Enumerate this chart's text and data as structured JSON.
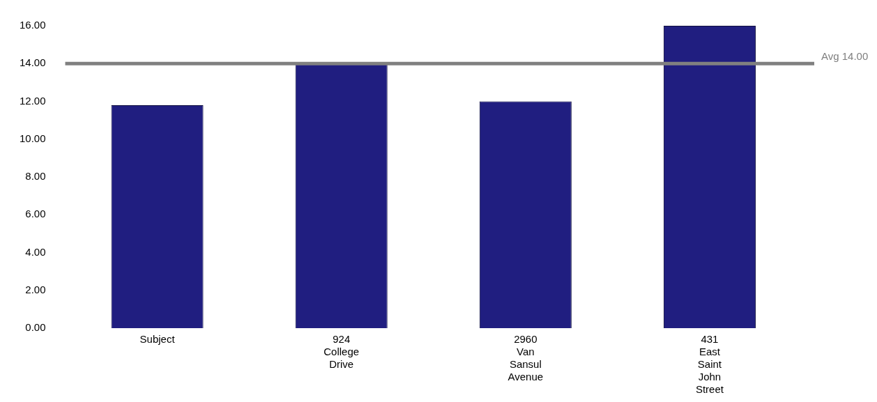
{
  "chart_data": {
    "type": "bar",
    "categories": [
      "Subject",
      "924 College Drive",
      "2960 Van Sansul Avenue",
      "431 East Saint John Street"
    ],
    "values": [
      11.8,
      14.0,
      12.0,
      16.0
    ],
    "color": "#201e80",
    "ylim": [
      0,
      16
    ],
    "yticks": [
      {
        "value": 0,
        "label": "0.00"
      },
      {
        "value": 2,
        "label": "2.00"
      },
      {
        "value": 4,
        "label": "4.00"
      },
      {
        "value": 6,
        "label": "6.00"
      },
      {
        "value": 8,
        "label": "8.00"
      },
      {
        "value": 10,
        "label": "10.00"
      },
      {
        "value": 12,
        "label": "12.00"
      },
      {
        "value": 14,
        "label": "14.00"
      },
      {
        "value": 16,
        "label": "16.00"
      }
    ],
    "grid": false,
    "ref_lines": [
      {
        "axis": "y",
        "value": 14.0,
        "label": "Avg 14.00",
        "color": "#808080"
      }
    ]
  }
}
